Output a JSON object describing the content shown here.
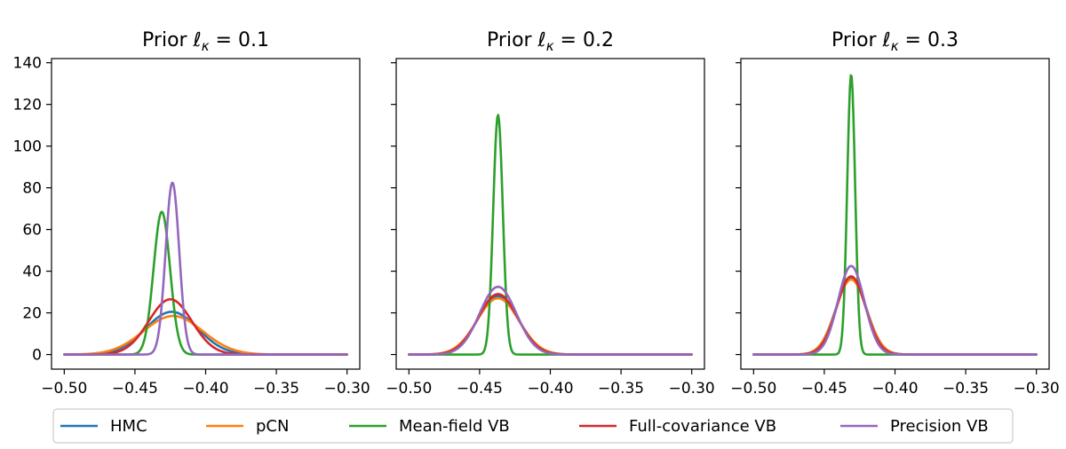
{
  "chart_data": {
    "type": "line",
    "panels": [
      {
        "title_prefix": "Prior ",
        "title_symbol": "ℓ",
        "title_subscript": "κ",
        "title_suffix": " = 0.1",
        "density": true,
        "series": [
          {
            "name": "HMC",
            "peaks": [
              {
                "mu": -0.424,
                "sigma": 0.0185,
                "height": 20.5
              }
            ]
          },
          {
            "name": "pCN",
            "peaks": [
              {
                "mu": -0.423,
                "sigma": 0.021,
                "height": 18.5
              }
            ]
          },
          {
            "name": "Mean-field VB",
            "peaks": [
              {
                "mu": -0.431,
                "sigma": 0.0058,
                "height": 68.5
              }
            ]
          },
          {
            "name": "Full-covariance VB",
            "peaks": [
              {
                "mu": -0.425,
                "sigma": 0.0152,
                "height": 26.5
              }
            ]
          },
          {
            "name": "Precision VB",
            "peaks": [
              {
                "mu": -0.4235,
                "sigma": 0.0048,
                "height": 82.5
              }
            ]
          }
        ]
      },
      {
        "title_prefix": "Prior ",
        "title_symbol": "ℓ",
        "title_subscript": "κ",
        "title_suffix": " = 0.2",
        "density": true,
        "series": [
          {
            "name": "HMC",
            "peaks": [
              {
                "mu": -0.437,
                "sigma": 0.0143,
                "height": 28.0
              }
            ]
          },
          {
            "name": "pCN",
            "peaks": [
              {
                "mu": -0.437,
                "sigma": 0.0148,
                "height": 27.0
              }
            ]
          },
          {
            "name": "Mean-field VB",
            "peaks": [
              {
                "mu": -0.437,
                "sigma": 0.0034,
                "height": 115.0
              }
            ]
          },
          {
            "name": "Full-covariance VB",
            "peaks": [
              {
                "mu": -0.437,
                "sigma": 0.014,
                "height": 29.0
              }
            ]
          },
          {
            "name": "Precision VB",
            "peaks": [
              {
                "mu": -0.437,
                "sigma": 0.013,
                "height": 32.5
              }
            ]
          }
        ]
      },
      {
        "title_prefix": "Prior ",
        "title_symbol": "ℓ",
        "title_subscript": "κ",
        "title_suffix": " = 0.3",
        "density": true,
        "series": [
          {
            "name": "HMC",
            "peaks": [
              {
                "mu": -0.431,
                "sigma": 0.0108,
                "height": 36.5
              }
            ]
          },
          {
            "name": "pCN",
            "peaks": [
              {
                "mu": -0.431,
                "sigma": 0.0108,
                "height": 36.0
              }
            ]
          },
          {
            "name": "Mean-field VB",
            "peaks": [
              {
                "mu": -0.431,
                "sigma": 0.0028,
                "height": 134.5
              }
            ]
          },
          {
            "name": "Full-covariance VB",
            "peaks": [
              {
                "mu": -0.431,
                "sigma": 0.0102,
                "height": 37.5
              }
            ]
          },
          {
            "name": "Precision VB",
            "peaks": [
              {
                "mu": -0.431,
                "sigma": 0.0093,
                "height": 42.5
              }
            ]
          }
        ]
      }
    ],
    "xlim": [
      -0.509,
      -0.291
    ],
    "ylim": [
      -7,
      142
    ],
    "x_ticks": [
      -0.5,
      -0.45,
      -0.4,
      -0.35,
      -0.3
    ],
    "x_tick_labels": [
      "−0.50",
      "−0.45",
      "−0.40",
      "−0.35",
      "−0.30"
    ],
    "y_ticks": [
      0,
      20,
      40,
      60,
      80,
      100,
      120,
      140
    ],
    "y_tick_labels": [
      "0",
      "20",
      "40",
      "60",
      "80",
      "100",
      "120",
      "140"
    ],
    "shared_y": true,
    "grid": false,
    "legend_placement": "bottom-center",
    "legend": [
      {
        "name": "HMC",
        "color": "#1f77b4"
      },
      {
        "name": "pCN",
        "color": "#ff7f0e"
      },
      {
        "name": "Mean-field VB",
        "color": "#2ca02c"
      },
      {
        "name": "Full-covariance VB",
        "color": "#d62728"
      },
      {
        "name": "Precision VB",
        "color": "#9467bd"
      }
    ]
  }
}
